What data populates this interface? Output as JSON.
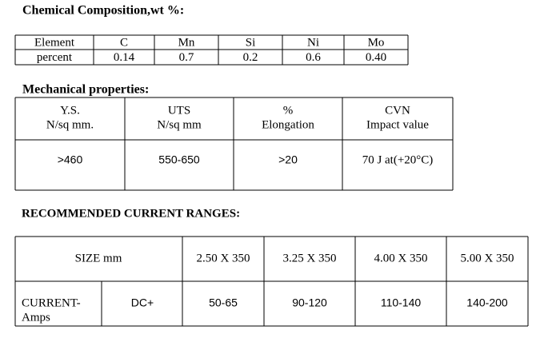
{
  "composition": {
    "title": "Chemical Composition,wt %:",
    "table": {
      "rows": [
        [
          "Element",
          "C",
          "Mn",
          "Si",
          "Ni",
          "Mo"
        ],
        [
          "percent",
          "0.14",
          "0.7",
          "0.2",
          "0.6",
          "0.40"
        ]
      ]
    }
  },
  "mechanical": {
    "title": "Mechanical properties:",
    "table": {
      "header": [
        [
          "Y.S.",
          "N/sq mm."
        ],
        [
          "UTS",
          "N/sq mm"
        ],
        [
          "%",
          "Elongation"
        ],
        [
          "CVN",
          "Impact value"
        ]
      ],
      "row": [
        ">460",
        "550-650",
        ">20",
        "70 J at(+20°C)"
      ]
    }
  },
  "current": {
    "title": "RECOMMENDED CURRENT RANGES:",
    "table": {
      "size_label": "SIZE mm",
      "sizes": [
        "2.50 X 350",
        "3.25 X 350",
        "4.00 X 350",
        "5.00 X 350"
      ],
      "row_label": [
        "CURRENT-",
        "Amps"
      ],
      "polarity": "DC+",
      "ranges": [
        "50-65",
        "90-120",
        "110-140",
        "140-200"
      ]
    }
  }
}
